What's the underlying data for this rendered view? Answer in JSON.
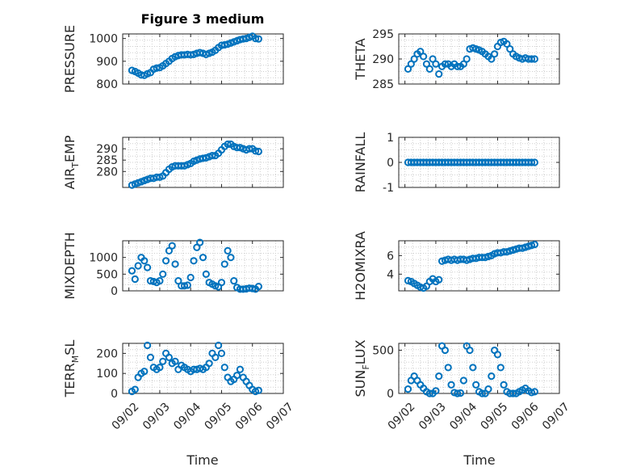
{
  "figure": {
    "title": "Figure 3 medium",
    "xlabel": "Time",
    "marker_color": "#0072bd",
    "x_ticks": [
      "09/02",
      "09/03",
      "09/04",
      "09/05",
      "09/06",
      "09/07"
    ]
  },
  "chart_data": [
    {
      "type": "scatter",
      "ylabel": "PRESSURE",
      "x_unit": "days since 09/01",
      "xlim": [
        1.8,
        7.0
      ],
      "ylim": [
        800,
        1020
      ],
      "yticks": [
        "800",
        "900",
        "1000"
      ],
      "grid": true,
      "x": [
        2.1,
        2.2,
        2.3,
        2.4,
        2.5,
        2.6,
        2.7,
        2.8,
        2.9,
        3.0,
        3.1,
        3.2,
        3.3,
        3.4,
        3.5,
        3.6,
        3.7,
        3.8,
        3.9,
        4.0,
        4.1,
        4.2,
        4.3,
        4.4,
        4.5,
        4.6,
        4.7,
        4.8,
        4.9,
        5.0,
        5.1,
        5.2,
        5.3,
        5.4,
        5.5,
        5.6,
        5.7,
        5.8,
        5.9,
        6.0,
        6.1,
        6.2
      ],
      "y": [
        860,
        855,
        848,
        840,
        838,
        845,
        850,
        865,
        870,
        872,
        880,
        890,
        900,
        912,
        920,
        925,
        928,
        928,
        930,
        928,
        930,
        935,
        938,
        935,
        930,
        935,
        940,
        948,
        960,
        970,
        972,
        975,
        980,
        985,
        990,
        995,
        998,
        1000,
        1005,
        1010,
        1000,
        998
      ]
    },
    {
      "type": "scatter",
      "ylabel": "THETA",
      "x_unit": "days since 09/01",
      "xlim": [
        1.8,
        7.0
      ],
      "ylim": [
        285,
        295
      ],
      "yticks": [
        "285",
        "290",
        "295"
      ],
      "grid": true,
      "x": [
        2.1,
        2.2,
        2.3,
        2.4,
        2.5,
        2.6,
        2.7,
        2.8,
        2.9,
        3.0,
        3.1,
        3.2,
        3.3,
        3.4,
        3.5,
        3.6,
        3.7,
        3.8,
        3.9,
        4.0,
        4.1,
        4.2,
        4.3,
        4.4,
        4.5,
        4.6,
        4.7,
        4.8,
        4.9,
        5.0,
        5.1,
        5.2,
        5.3,
        5.4,
        5.5,
        5.6,
        5.7,
        5.8,
        5.9,
        6.0,
        6.1,
        6.2
      ],
      "y": [
        288,
        289,
        290,
        291,
        291.5,
        290.5,
        289,
        288,
        290,
        289,
        287,
        288.5,
        289,
        289,
        288.5,
        289,
        288.5,
        288.5,
        289,
        290,
        292,
        292.2,
        292,
        291.8,
        291.5,
        291,
        290.5,
        290,
        291,
        292.5,
        293.3,
        293.5,
        293,
        292,
        291,
        290.5,
        290.2,
        290,
        290.2,
        290,
        290,
        290
      ]
    },
    {
      "type": "scatter",
      "ylabel": "AIR_TEMP",
      "x_unit": "days since 09/01",
      "xlim": [
        1.8,
        7.0
      ],
      "ylim": [
        273,
        295
      ],
      "yticks": [
        "280",
        "285",
        "290"
      ],
      "grid": true,
      "x": [
        2.1,
        2.2,
        2.3,
        2.4,
        2.5,
        2.6,
        2.7,
        2.8,
        2.9,
        3.0,
        3.1,
        3.2,
        3.3,
        3.4,
        3.5,
        3.6,
        3.7,
        3.8,
        3.9,
        4.0,
        4.1,
        4.2,
        4.3,
        4.4,
        4.5,
        4.6,
        4.7,
        4.8,
        4.9,
        5.0,
        5.1,
        5.2,
        5.3,
        5.4,
        5.5,
        5.6,
        5.7,
        5.8,
        5.9,
        6.0,
        6.1,
        6.2
      ],
      "y": [
        274,
        274.5,
        275,
        275.5,
        276,
        276.5,
        277,
        277,
        277.5,
        277.5,
        278,
        279.5,
        281,
        282,
        282.5,
        282.5,
        282.5,
        282.5,
        283,
        283.5,
        284.5,
        285,
        285.5,
        285.8,
        286,
        286.5,
        287,
        287,
        288,
        289.5,
        291,
        292,
        292,
        291,
        290.5,
        290.5,
        290,
        289.5,
        290,
        290,
        289,
        288.8
      ]
    },
    {
      "type": "scatter",
      "ylabel": "RAINFALL",
      "x_unit": "days since 09/01",
      "xlim": [
        1.8,
        7.0
      ],
      "ylim": [
        -1,
        1
      ],
      "yticks": [
        "-1",
        "0",
        "1"
      ],
      "grid": true,
      "x": [
        2.1,
        2.2,
        2.3,
        2.4,
        2.5,
        2.6,
        2.7,
        2.8,
        2.9,
        3.0,
        3.1,
        3.2,
        3.3,
        3.4,
        3.5,
        3.6,
        3.7,
        3.8,
        3.9,
        4.0,
        4.1,
        4.2,
        4.3,
        4.4,
        4.5,
        4.6,
        4.7,
        4.8,
        4.9,
        5.0,
        5.1,
        5.2,
        5.3,
        5.4,
        5.5,
        5.6,
        5.7,
        5.8,
        5.9,
        6.0,
        6.1,
        6.2
      ],
      "y": [
        0,
        0,
        0,
        0,
        0,
        0,
        0,
        0,
        0,
        0,
        0,
        0,
        0,
        0,
        0,
        0,
        0,
        0,
        0,
        0,
        0,
        0,
        0,
        0,
        0,
        0,
        0,
        0,
        0,
        0,
        0,
        0,
        0,
        0,
        0,
        0,
        0,
        0,
        0,
        0,
        0,
        0
      ]
    },
    {
      "type": "scatter",
      "ylabel": "MIXDEPTH",
      "x_unit": "days since 09/01",
      "xlim": [
        1.8,
        7.0
      ],
      "ylim": [
        0,
        1500
      ],
      "yticks": [
        "0",
        "500",
        "1000"
      ],
      "grid": true,
      "x": [
        2.1,
        2.2,
        2.3,
        2.4,
        2.5,
        2.6,
        2.7,
        2.8,
        2.9,
        3.0,
        3.1,
        3.2,
        3.3,
        3.4,
        3.5,
        3.6,
        3.7,
        3.8,
        3.9,
        4.0,
        4.1,
        4.2,
        4.3,
        4.4,
        4.5,
        4.6,
        4.7,
        4.8,
        4.9,
        5.0,
        5.1,
        5.2,
        5.3,
        5.4,
        5.5,
        5.6,
        5.7,
        5.8,
        5.9,
        6.0,
        6.1,
        6.2
      ],
      "y": [
        600,
        350,
        750,
        1000,
        900,
        700,
        300,
        280,
        250,
        300,
        500,
        900,
        1200,
        1350,
        800,
        300,
        150,
        150,
        170,
        400,
        900,
        1300,
        1450,
        1000,
        500,
        250,
        200,
        150,
        120,
        250,
        800,
        1200,
        1000,
        300,
        100,
        50,
        50,
        60,
        80,
        70,
        50,
        130
      ]
    },
    {
      "type": "scatter",
      "ylabel": "H2OMIXRA",
      "x_unit": "days since 09/01",
      "xlim": [
        1.8,
        7.0
      ],
      "ylim": [
        2.2,
        7.6
      ],
      "yticks": [
        "4",
        "6"
      ],
      "grid": true,
      "x": [
        2.1,
        2.2,
        2.3,
        2.4,
        2.5,
        2.6,
        2.7,
        2.8,
        2.9,
        3.0,
        3.1,
        3.2,
        3.3,
        3.4,
        3.5,
        3.6,
        3.7,
        3.8,
        3.9,
        4.0,
        4.1,
        4.2,
        4.3,
        4.4,
        4.5,
        4.6,
        4.7,
        4.8,
        4.9,
        5.0,
        5.1,
        5.2,
        5.3,
        5.4,
        5.5,
        5.6,
        5.7,
        5.8,
        5.9,
        6.0,
        6.1,
        6.2
      ],
      "y": [
        3.3,
        3.2,
        3.0,
        2.8,
        2.6,
        2.5,
        2.7,
        3.2,
        3.5,
        3.2,
        3.4,
        5.4,
        5.5,
        5.6,
        5.5,
        5.6,
        5.5,
        5.6,
        5.6,
        5.5,
        5.6,
        5.7,
        5.7,
        5.8,
        5.8,
        5.8,
        5.9,
        6.0,
        6.2,
        6.3,
        6.3,
        6.4,
        6.4,
        6.5,
        6.6,
        6.7,
        6.8,
        6.8,
        6.9,
        7.0,
        7.1,
        7.2
      ]
    },
    {
      "type": "scatter",
      "ylabel": "TERR_MSL",
      "x_unit": "days since 09/01",
      "xlim": [
        1.8,
        7.0
      ],
      "ylim": [
        0,
        250
      ],
      "yticks": [
        "0",
        "100",
        "200"
      ],
      "grid": true,
      "x": [
        2.1,
        2.2,
        2.3,
        2.4,
        2.5,
        2.6,
        2.7,
        2.8,
        2.9,
        3.0,
        3.1,
        3.2,
        3.3,
        3.4,
        3.5,
        3.6,
        3.7,
        3.8,
        3.9,
        4.0,
        4.1,
        4.2,
        4.3,
        4.4,
        4.5,
        4.6,
        4.7,
        4.8,
        4.9,
        5.0,
        5.1,
        5.2,
        5.3,
        5.4,
        5.5,
        5.6,
        5.7,
        5.8,
        5.9,
        6.0,
        6.1,
        6.2
      ],
      "y": [
        10,
        20,
        80,
        100,
        110,
        240,
        180,
        130,
        120,
        130,
        160,
        200,
        180,
        150,
        160,
        120,
        140,
        130,
        120,
        110,
        120,
        120,
        125,
        120,
        130,
        150,
        200,
        180,
        240,
        200,
        130,
        80,
        60,
        70,
        90,
        120,
        80,
        60,
        40,
        20,
        10,
        15
      ]
    },
    {
      "type": "scatter",
      "ylabel": "SUN_FLUX",
      "x_unit": "days since 09/01",
      "xlim": [
        1.8,
        7.0
      ],
      "ylim": [
        0,
        580
      ],
      "yticks": [
        "0",
        "500"
      ],
      "grid": true,
      "x": [
        2.1,
        2.2,
        2.3,
        2.4,
        2.5,
        2.6,
        2.7,
        2.8,
        2.9,
        3.0,
        3.1,
        3.2,
        3.3,
        3.4,
        3.5,
        3.6,
        3.7,
        3.8,
        3.9,
        4.0,
        4.1,
        4.2,
        4.3,
        4.4,
        4.5,
        4.6,
        4.7,
        4.8,
        4.9,
        5.0,
        5.1,
        5.2,
        5.3,
        5.4,
        5.5,
        5.6,
        5.7,
        5.8,
        5.9,
        6.0,
        6.1,
        6.2
      ],
      "y": [
        50,
        150,
        200,
        150,
        100,
        60,
        20,
        0,
        0,
        30,
        200,
        550,
        500,
        300,
        100,
        10,
        0,
        5,
        150,
        550,
        500,
        300,
        100,
        20,
        0,
        0,
        50,
        200,
        500,
        450,
        300,
        100,
        20,
        0,
        0,
        0,
        20,
        40,
        60,
        30,
        10,
        20
      ]
    }
  ]
}
